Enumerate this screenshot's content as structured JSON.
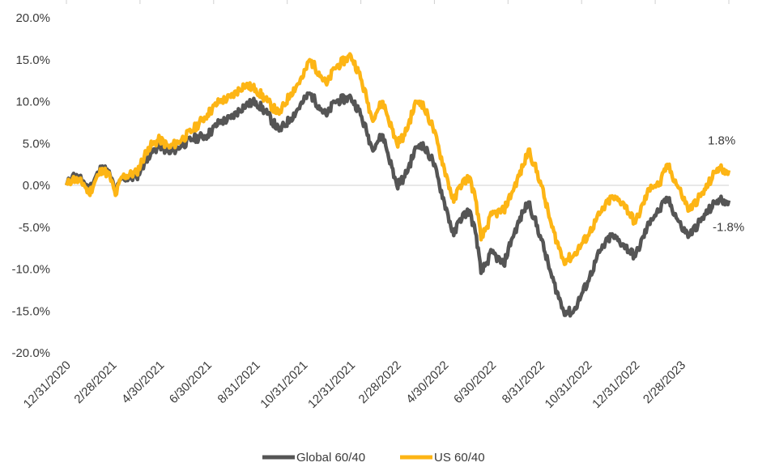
{
  "chart_data": {
    "type": "line",
    "title": "",
    "xlabel": "",
    "ylabel": "",
    "x_start": "2020-12-31",
    "x_end": "2023-04-30",
    "xticks": [
      "12/31/2020",
      "2/28/2021",
      "4/30/2021",
      "6/30/2021",
      "8/31/2021",
      "10/31/2021",
      "12/31/2021",
      "2/28/2022",
      "4/30/2022",
      "6/30/2022",
      "8/31/2022",
      "10/31/2022",
      "12/31/2022",
      "2/28/2023"
    ],
    "yticks": [
      "20.0%",
      "15.0%",
      "10.0%",
      "5.0%",
      "0.0%",
      "-5.0%",
      "-10.0%",
      "-15.0%",
      "-20.0%"
    ],
    "ylim": [
      -20,
      20
    ],
    "grid": false,
    "legend": "bottom",
    "series": [
      {
        "name": "Global 60/40",
        "color": "#555555",
        "end_label": "-1.8%",
        "points": [
          [
            "2020-12-31",
            0.0
          ],
          [
            "2021-01-08",
            1.2
          ],
          [
            "2021-01-22",
            0.5
          ],
          [
            "2021-01-29",
            -0.5
          ],
          [
            "2021-02-10",
            1.5
          ],
          [
            "2021-02-15",
            2.3
          ],
          [
            "2021-02-25",
            1.2
          ],
          [
            "2021-03-04",
            -0.8
          ],
          [
            "2021-03-12",
            0.8
          ],
          [
            "2021-03-31",
            1.0
          ],
          [
            "2021-04-15",
            3.5
          ],
          [
            "2021-04-30",
            4.8
          ],
          [
            "2021-05-12",
            3.8
          ],
          [
            "2021-05-28",
            4.8
          ],
          [
            "2021-06-10",
            5.5
          ],
          [
            "2021-06-30",
            6.0
          ],
          [
            "2021-07-15",
            7.5
          ],
          [
            "2021-07-30",
            8.0
          ],
          [
            "2021-08-16",
            9.5
          ],
          [
            "2021-08-31",
            10.0
          ],
          [
            "2021-09-15",
            8.5
          ],
          [
            "2021-09-30",
            6.5
          ],
          [
            "2021-10-15",
            8.0
          ],
          [
            "2021-10-31",
            10.0
          ],
          [
            "2021-11-08",
            11.0
          ],
          [
            "2021-11-20",
            9.5
          ],
          [
            "2021-11-30",
            8.3
          ],
          [
            "2021-12-10",
            10.0
          ],
          [
            "2021-12-31",
            10.5
          ],
          [
            "2022-01-10",
            9.0
          ],
          [
            "2022-01-20",
            6.5
          ],
          [
            "2022-01-27",
            4.5
          ],
          [
            "2022-02-10",
            6.0
          ],
          [
            "2022-02-28",
            0.0
          ],
          [
            "2022-03-10",
            1.0
          ],
          [
            "2022-03-25",
            4.5
          ],
          [
            "2022-03-31",
            5.0
          ],
          [
            "2022-04-15",
            3.0
          ],
          [
            "2022-04-30",
            -2.0
          ],
          [
            "2022-05-12",
            -6.0
          ],
          [
            "2022-05-20",
            -4.0
          ],
          [
            "2022-06-01",
            -3.0
          ],
          [
            "2022-06-10",
            -6.0
          ],
          [
            "2022-06-16",
            -10.5
          ],
          [
            "2022-06-30",
            -8.0
          ],
          [
            "2022-07-15",
            -9.5
          ],
          [
            "2022-07-25",
            -6.5
          ],
          [
            "2022-08-10",
            -3.0
          ],
          [
            "2022-08-16",
            -2.0
          ],
          [
            "2022-08-31",
            -6.0
          ],
          [
            "2022-09-15",
            -11.0
          ],
          [
            "2022-09-30",
            -15.0
          ],
          [
            "2022-10-12",
            -15.2
          ],
          [
            "2022-10-31",
            -11.5
          ],
          [
            "2022-11-15",
            -8.0
          ],
          [
            "2022-11-30",
            -6.0
          ],
          [
            "2022-12-15",
            -7.0
          ],
          [
            "2022-12-31",
            -8.5
          ],
          [
            "2023-01-20",
            -4.0
          ],
          [
            "2023-01-31",
            -3.0
          ],
          [
            "2023-02-10",
            -1.5
          ],
          [
            "2023-02-28",
            -5.0
          ],
          [
            "2023-03-10",
            -6.0
          ],
          [
            "2023-03-31",
            -3.5
          ],
          [
            "2023-04-15",
            -1.8
          ],
          [
            "2023-04-30",
            -1.8
          ]
        ]
      },
      {
        "name": "US 60/40",
        "color": "#FDB515",
        "end_label": "1.8%",
        "points": [
          [
            "2020-12-31",
            0.0
          ],
          [
            "2021-01-08",
            0.8
          ],
          [
            "2021-01-22",
            0.2
          ],
          [
            "2021-01-29",
            -1.0
          ],
          [
            "2021-02-10",
            1.2
          ],
          [
            "2021-02-15",
            2.0
          ],
          [
            "2021-02-25",
            1.0
          ],
          [
            "2021-03-04",
            -1.2
          ],
          [
            "2021-03-12",
            1.0
          ],
          [
            "2021-03-31",
            1.5
          ],
          [
            "2021-04-15",
            4.5
          ],
          [
            "2021-04-30",
            5.5
          ],
          [
            "2021-05-12",
            4.5
          ],
          [
            "2021-05-28",
            5.5
          ],
          [
            "2021-06-10",
            6.5
          ],
          [
            "2021-06-30",
            8.5
          ],
          [
            "2021-07-15",
            10.0
          ],
          [
            "2021-07-30",
            10.5
          ],
          [
            "2021-08-16",
            12.0
          ],
          [
            "2021-08-31",
            11.5
          ],
          [
            "2021-09-15",
            10.0
          ],
          [
            "2021-09-30",
            8.5
          ],
          [
            "2021-10-15",
            11.0
          ],
          [
            "2021-10-31",
            13.0
          ],
          [
            "2021-11-08",
            15.0
          ],
          [
            "2021-11-20",
            13.5
          ],
          [
            "2021-11-30",
            12.0
          ],
          [
            "2021-12-10",
            14.0
          ],
          [
            "2021-12-31",
            15.5
          ],
          [
            "2022-01-10",
            13.5
          ],
          [
            "2022-01-20",
            10.5
          ],
          [
            "2022-01-27",
            8.0
          ],
          [
            "2022-02-10",
            10.0
          ],
          [
            "2022-02-28",
            5.0
          ],
          [
            "2022-03-10",
            6.0
          ],
          [
            "2022-03-25",
            10.0
          ],
          [
            "2022-03-31",
            10.0
          ],
          [
            "2022-04-15",
            7.0
          ],
          [
            "2022-04-30",
            2.0
          ],
          [
            "2022-05-12",
            -2.0
          ],
          [
            "2022-05-20",
            0.0
          ],
          [
            "2022-06-01",
            1.0
          ],
          [
            "2022-06-10",
            -2.0
          ],
          [
            "2022-06-16",
            -6.5
          ],
          [
            "2022-06-30",
            -3.5
          ],
          [
            "2022-07-15",
            -3.0
          ],
          [
            "2022-07-25",
            -1.0
          ],
          [
            "2022-08-10",
            2.5
          ],
          [
            "2022-08-16",
            4.3
          ],
          [
            "2022-08-31",
            0.5
          ],
          [
            "2022-09-15",
            -5.0
          ],
          [
            "2022-09-30",
            -9.0
          ],
          [
            "2022-10-12",
            -8.5
          ],
          [
            "2022-10-31",
            -6.0
          ],
          [
            "2022-11-15",
            -3.5
          ],
          [
            "2022-11-30",
            -1.5
          ],
          [
            "2022-12-15",
            -2.0
          ],
          [
            "2022-12-31",
            -4.5
          ],
          [
            "2023-01-20",
            0.0
          ],
          [
            "2023-01-31",
            0.0
          ],
          [
            "2023-02-10",
            2.5
          ],
          [
            "2023-02-28",
            -1.0
          ],
          [
            "2023-03-10",
            -3.0
          ],
          [
            "2023-03-31",
            -0.5
          ],
          [
            "2023-04-15",
            2.0
          ],
          [
            "2023-04-30",
            1.8
          ]
        ]
      }
    ]
  }
}
